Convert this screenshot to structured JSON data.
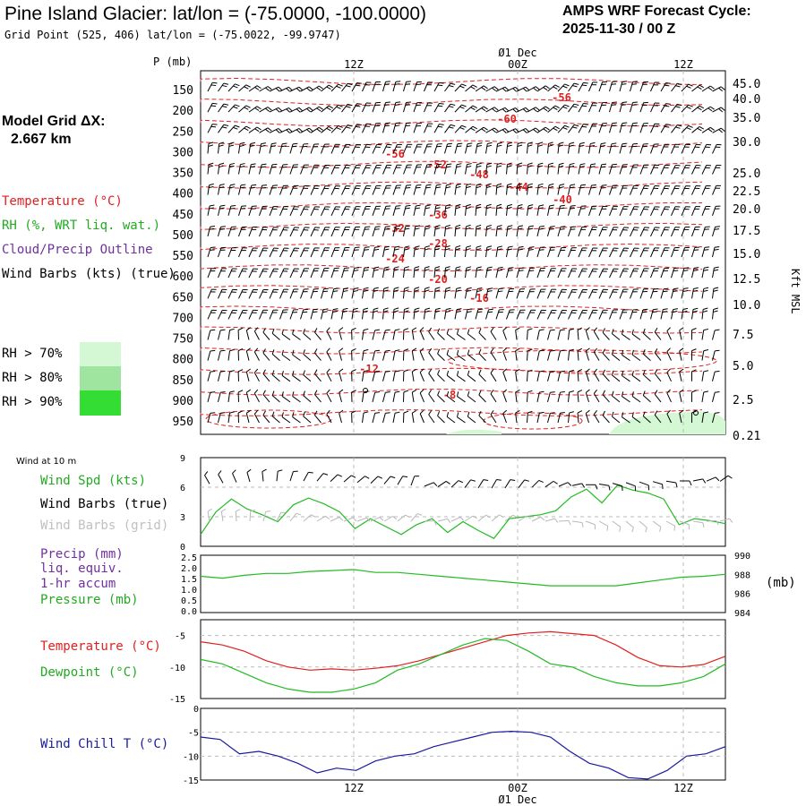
{
  "header": {
    "title": "Pine Island Glacier:  lat/lon = (-75.0000, -100.0000)",
    "grid_point": "Grid Point (525, 406) lat/lon = (-75.0022, -99.9747)",
    "cycle_label": "AMPS WRF Forecast Cycle:",
    "cycle_value": "2025-11-30 / 00  Z"
  },
  "model_grid": {
    "label": "Model Grid ΔX:",
    "value": "2.667 km"
  },
  "legend": {
    "temperature": "Temperature (°C)",
    "rh": "RH (%, WRT liq. wat.)",
    "cloud": "Cloud/Precip Outline",
    "wind_barbs": "Wind Barbs (kts) (true)",
    "rh70": "RH > 70%",
    "rh80": "RH > 80%",
    "rh90": "RH > 90%"
  },
  "colors": {
    "temperature": "#e02020",
    "rh": "#22aa22",
    "cloud": "#7030a0",
    "rh70": "#d4f7d4",
    "rh80": "#9fe49f",
    "rh90": "#33dd33",
    "wind_speed": "#22bb22",
    "pressure": "#22bb22",
    "dewpoint": "#22bb22",
    "wind_chill": "#1a1aa0",
    "grid_barbs": "#b8b8b8"
  },
  "time_axis": {
    "top_labels": [
      "12Z",
      "00Z",
      "12Z"
    ],
    "date_label": "Ø1 Dec",
    "bottom_labels": [
      "12Z",
      "00Z",
      "12Z"
    ]
  },
  "chart_data": [
    {
      "type": "heatmap",
      "name": "time-height cross section",
      "y_axis_label": "P (mb)",
      "pressure_levels": [
        150,
        200,
        250,
        300,
        350,
        400,
        450,
        500,
        550,
        600,
        650,
        700,
        750,
        800,
        850,
        900,
        950
      ],
      "right_axis_label": "Kft MSL",
      "height_kft": [
        "45.0",
        "40.0",
        "35.0",
        "30.0",
        "25.0",
        "22.5",
        "20.0",
        "17.5",
        "15.0",
        "12.5",
        "10.0",
        "7.5",
        "5.0",
        "2.5",
        "0.21"
      ],
      "temperature_labels": [
        "-56",
        "-60",
        "-56",
        "-52",
        "-48",
        "-44",
        "-40",
        "-36",
        "-32",
        "-28",
        "-24",
        "-20",
        "-16",
        "-12",
        "-8"
      ]
    },
    {
      "type": "line",
      "name": "10 m wind",
      "panel_title": "Wind at 10 m",
      "series_label": "Wind Spd (kts)",
      "barbs_true_label": "Wind Barbs (true)",
      "barbs_grid_label": "Wind Barbs (grid)",
      "y_ticks": [
        "0",
        "3",
        "6",
        "9"
      ],
      "ylim": [
        0,
        9
      ],
      "values": [
        1.2,
        3.5,
        4.8,
        3.8,
        3.2,
        2.5,
        4.2,
        4.9,
        4.3,
        3.5,
        1.8,
        2.8,
        2.0,
        1.2,
        2.2,
        2.8,
        1.4,
        2.5,
        1.6,
        0.8,
        2.8,
        3.0,
        3.2,
        3.6,
        5.0,
        5.8,
        4.4,
        6.2,
        5.7,
        5.4,
        4.8,
        2.2,
        2.8,
        2.6,
        2.3
      ]
    },
    {
      "type": "line",
      "name": "precip and pressure",
      "precip_label": "Precip (mm)",
      "precip_sub1": "liq. equiv.",
      "precip_sub2": "1-hr accum",
      "pressure_label": "Pressure (mb)",
      "right_unit": "(mb)",
      "left_ticks": [
        "2.5",
        "2.0",
        "1.5",
        "1.0",
        "0.5",
        "0.0"
      ],
      "right_ticks": [
        "990",
        "988",
        "986",
        "984"
      ],
      "ylim": [
        984,
        990
      ],
      "pressure_values": [
        987.8,
        987.6,
        987.9,
        988.1,
        988.1,
        988.3,
        988.4,
        988.5,
        988.2,
        988.2,
        988.0,
        987.8,
        987.6,
        987.4,
        987.2,
        987.0,
        986.8,
        986.8,
        986.8,
        986.8,
        987.1,
        987.4,
        987.7,
        987.8,
        988.0
      ],
      "precip_values": [
        0,
        0,
        0,
        0,
        0,
        0,
        0,
        0,
        0,
        0,
        0,
        0,
        0,
        0,
        0,
        0,
        0,
        0,
        0,
        0,
        0,
        0,
        0,
        0,
        0
      ]
    },
    {
      "type": "line",
      "name": "temperature and dewpoint",
      "temp_label": "Temperature (°C)",
      "dew_label": "Dewpoint (°C)",
      "y_ticks": [
        "-5",
        "-10",
        "-15"
      ],
      "ylim": [
        -15,
        -2.5
      ],
      "temperature": [
        -6.0,
        -6.5,
        -7.5,
        -9.0,
        -10.0,
        -10.5,
        -10.3,
        -10.5,
        -10.2,
        -9.8,
        -9.0,
        -8.0,
        -7.0,
        -6.0,
        -5.0,
        -4.6,
        -4.4,
        -4.7,
        -5.0,
        -6.5,
        -8.5,
        -9.8,
        -10.0,
        -9.6,
        -8.3
      ],
      "dewpoint": [
        -8.8,
        -9.5,
        -11.0,
        -12.5,
        -13.5,
        -14.0,
        -14.0,
        -13.5,
        -12.5,
        -10.5,
        -9.5,
        -8.0,
        -6.5,
        -5.5,
        -5.8,
        -7.5,
        -9.5,
        -10.0,
        -11.5,
        -12.5,
        -13.0,
        -13.0,
        -12.5,
        -11.5,
        -9.5
      ]
    },
    {
      "type": "line",
      "name": "wind chill",
      "label": "Wind Chill T (°C)",
      "y_ticks": [
        "0",
        "-5",
        "-10",
        "-15"
      ],
      "ylim": [
        -15,
        0
      ],
      "values": [
        -6.0,
        -6.5,
        -9.5,
        -9.0,
        -10.0,
        -11.5,
        -13.5,
        -12.5,
        -13.0,
        -11.0,
        -10.0,
        -9.5,
        -8.0,
        -7.0,
        -6.0,
        -5.0,
        -4.8,
        -5.0,
        -6.0,
        -9.0,
        -11.5,
        -12.5,
        -14.5,
        -14.8,
        -13.0,
        -10.0,
        -9.5,
        -8.0
      ]
    }
  ]
}
